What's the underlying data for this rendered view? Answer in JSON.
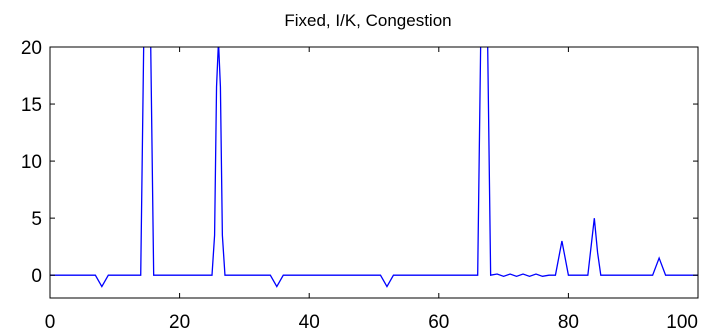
{
  "chart_data": {
    "type": "line",
    "title": "Fixed, I/K, Congestion",
    "xlabel": "",
    "ylabel": "",
    "xlim": [
      0,
      100
    ],
    "ylim": [
      -2,
      20
    ],
    "xticks": [
      0,
      20,
      40,
      60,
      80,
      100
    ],
    "yticks": [
      0,
      5,
      10,
      15,
      20
    ],
    "grid": false,
    "line_color": "#0000ff",
    "series": [
      {
        "x": [
          0,
          7,
          8,
          9,
          14,
          14.5,
          15.5,
          16,
          25,
          25.4,
          25.7,
          26,
          26.3,
          26.6,
          27,
          34,
          35,
          36,
          51,
          52,
          53,
          66,
          66.5,
          67.5,
          68,
          69,
          70,
          71,
          72,
          73,
          74,
          75,
          76,
          77,
          78,
          79,
          80,
          83,
          84,
          84.5,
          85,
          93,
          94,
          95,
          100
        ],
        "y": [
          0,
          0,
          -1,
          0,
          0,
          22,
          22,
          0,
          0,
          3.5,
          16.5,
          20.5,
          16.5,
          3.5,
          0,
          0,
          -1,
          0,
          0,
          -1,
          0,
          0,
          22,
          22,
          0,
          0.1,
          -0.1,
          0.1,
          -0.1,
          0.1,
          -0.1,
          0.1,
          -0.1,
          0,
          0,
          3,
          0,
          0,
          5,
          2,
          0,
          0,
          1.5,
          0,
          0
        ]
      }
    ]
  }
}
